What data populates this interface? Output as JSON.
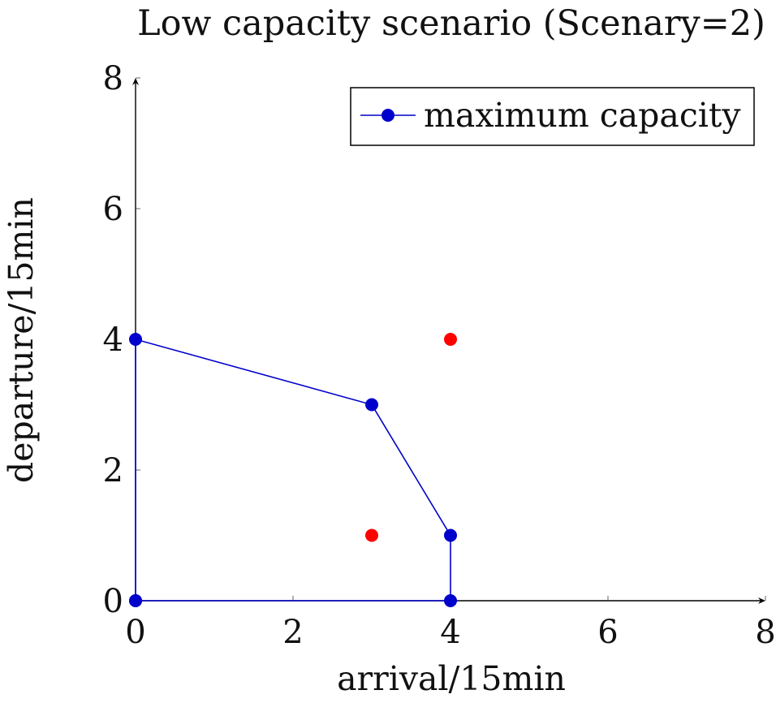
{
  "chart_data": {
    "type": "scatter",
    "title": "Low capacity scenario (Scenary=2)",
    "xlabel": "arrival/15min",
    "ylabel": "departure/15min",
    "xlim": [
      0,
      8
    ],
    "ylim": [
      0,
      8
    ],
    "xticks": [
      0,
      2,
      4,
      6,
      8
    ],
    "yticks": [
      0,
      2,
      4,
      6,
      8
    ],
    "grid": false,
    "legend_position": "top-right",
    "series": [
      {
        "name": "maximum capacity",
        "style": "line-with-markers",
        "color": "#0000cc",
        "points": [
          {
            "x": 0,
            "y": 0
          },
          {
            "x": 0,
            "y": 4
          },
          {
            "x": 3,
            "y": 3
          },
          {
            "x": 4,
            "y": 1
          },
          {
            "x": 4,
            "y": 0
          },
          {
            "x": 0,
            "y": 0
          }
        ]
      },
      {
        "name": "",
        "style": "markers",
        "color": "#ff0000",
        "points": [
          {
            "x": 3,
            "y": 1
          },
          {
            "x": 4,
            "y": 4
          }
        ]
      }
    ]
  }
}
